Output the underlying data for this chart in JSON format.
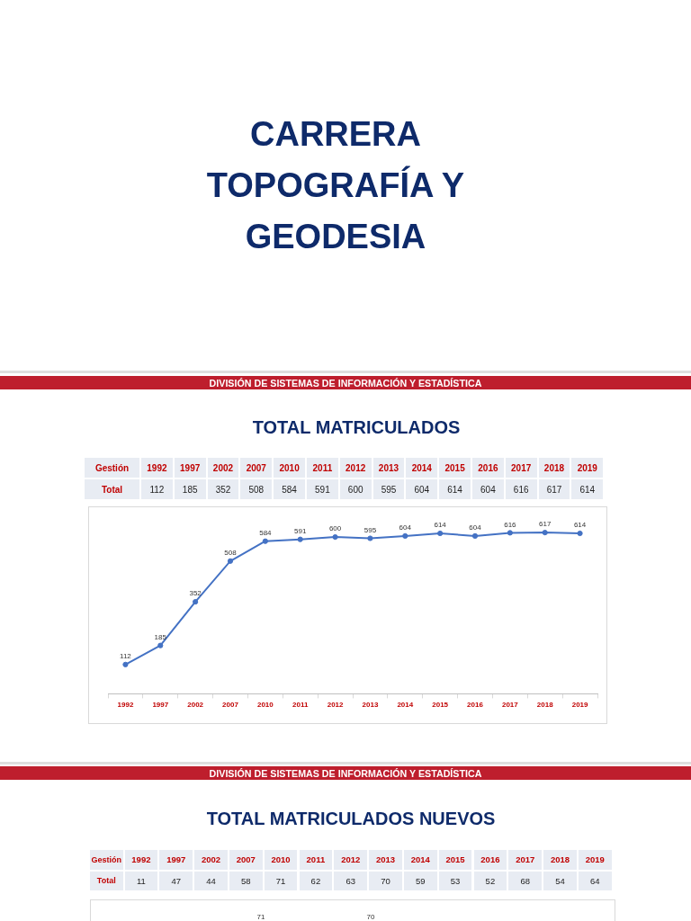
{
  "chart_data": [
    {
      "type": "heatmap",
      "title": "TOTAL MATRICULADOS",
      "xlabel": "Gestión",
      "annotations": [
        "CARRERA TOPOGRAFÍA Y GEODESIA",
        "DIVISIÓN DE SISTEMAS DE INFORMACIÓN Y ESTADÍSTICA"
      ],
      "categories": [
        "1992",
        "1997",
        "2002",
        "2007",
        "2010",
        "2011",
        "2012",
        "2013",
        "2014",
        "2015",
        "2016",
        "2017",
        "2018",
        "2019"
      ],
      "y_categories": [
        "Total"
      ],
      "cells": [
        [
          112,
          185,
          352,
          508,
          584,
          591,
          600,
          595,
          604,
          614,
          604,
          616,
          617,
          614
        ]
      ],
      "data_labels": true
    },
    {
      "type": "line",
      "categories": [
        "1992",
        "1997",
        "2002",
        "2007",
        "2010",
        "2011",
        "2012",
        "2013",
        "2014",
        "2015",
        "2016",
        "2017",
        "2018",
        "2019"
      ],
      "series": [
        {
          "color": "#4472c4",
          "values": [
            112,
            185,
            352,
            508,
            584,
            591,
            600,
            595,
            604,
            614,
            604,
            616,
            617,
            614
          ]
        }
      ],
      "marker": "circle",
      "data_labels": true
    },
    {
      "type": "heatmap",
      "title": "TOTAL MATRICULADOS NUEVOS",
      "xlabel": "Gestión",
      "annotations": [
        "DIVISIÓN DE SISTEMAS DE INFORMACIÓN Y ESTADÍSTICA",
        "71",
        "70"
      ],
      "categories": [
        "1992",
        "1997",
        "2002",
        "2007",
        "2010",
        "2011",
        "2012",
        "2013",
        "2014",
        "2015",
        "2016",
        "2017",
        "2018",
        "2019"
      ],
      "y_categories": [
        "Total"
      ],
      "cells": [
        [
          11,
          47,
          44,
          58,
          71,
          62,
          63,
          70,
          59,
          53,
          52,
          68,
          54,
          64
        ]
      ],
      "data_labels": true
    }
  ]
}
